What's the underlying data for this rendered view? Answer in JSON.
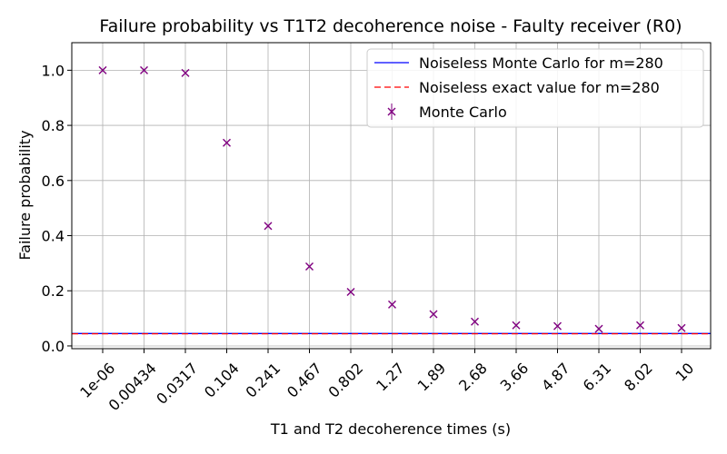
{
  "chart_data": {
    "type": "scatter",
    "title": "Failure probability vs T1T2 decoherence noise - Faulty receiver (R0)",
    "xlabel": "T1 and T2 decoherence times (s)",
    "ylabel": "Failure probability",
    "categories": [
      "1e-06",
      "0.00434",
      "0.0317",
      "0.104",
      "0.241",
      "0.467",
      "0.802",
      "1.27",
      "1.89",
      "2.68",
      "3.66",
      "4.87",
      "6.31",
      "8.02",
      "10"
    ],
    "ylim": [
      -0.01,
      1.1
    ],
    "yticks": [
      0.0,
      0.2,
      0.4,
      0.6,
      0.8,
      1.0
    ],
    "yticklabels": [
      "0.0",
      "0.2",
      "0.4",
      "0.6",
      "0.8",
      "1.0"
    ],
    "grid": true,
    "legend_position": "top-right",
    "series": [
      {
        "name": "Noiseless Monte Carlo for m=280",
        "kind": "hline",
        "value": 0.045,
        "color": "#0000ff",
        "style": "solid"
      },
      {
        "name": "Noiseless exact value for m=280",
        "kind": "hline",
        "value": 0.044,
        "color": "#ff0000",
        "style": "dashed"
      },
      {
        "name": "Monte Carlo",
        "kind": "points",
        "marker": "x",
        "color": "#800080",
        "values": [
          1.0,
          1.0,
          0.99,
          0.737,
          0.435,
          0.288,
          0.196,
          0.15,
          0.115,
          0.088,
          0.075,
          0.072,
          0.062,
          0.075,
          0.065
        ]
      }
    ]
  }
}
